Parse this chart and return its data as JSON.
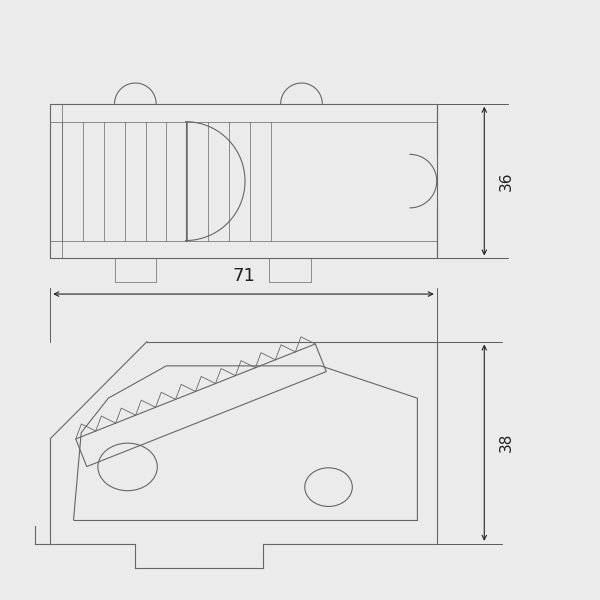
{
  "bg_color": "#ebebeb",
  "line_color": "#666666",
  "dim_color": "#222222",
  "line_width": 0.8,
  "thin_line": 0.5,
  "dim_36": "36",
  "dim_38": "38",
  "dim_71": "71",
  "font_size_dim": 11,
  "fig_width": 6.0,
  "fig_height": 6.0,
  "dpi": 100
}
